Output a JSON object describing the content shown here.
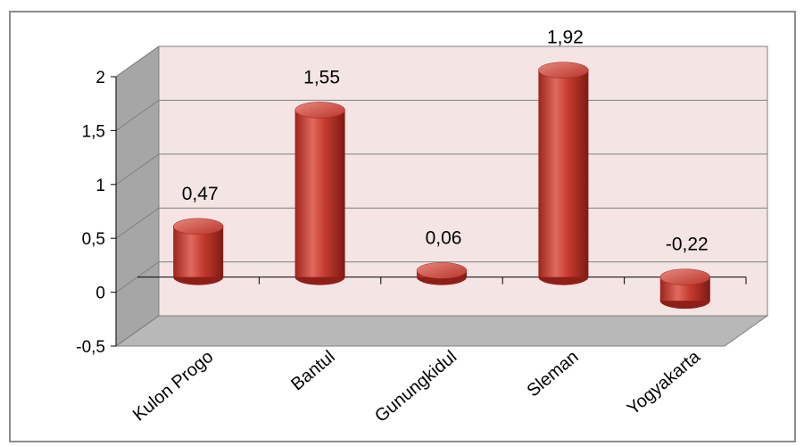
{
  "chart_data": {
    "type": "bar",
    "style": "3d-cylinder",
    "categories": [
      "Kulon Progo",
      "Bantul",
      "Gunungkidul",
      "Sleman",
      "Yogyakarta"
    ],
    "values": [
      0.47,
      1.55,
      0.06,
      1.92,
      -0.22
    ],
    "value_labels": [
      "0,47",
      "1,55",
      "0,06",
      "1,92",
      "-0,22"
    ],
    "y_ticks": [
      -0.5,
      0,
      0.5,
      1,
      1.5,
      2
    ],
    "y_tick_labels": [
      "-0,5",
      "0",
      "0,5",
      "1",
      "1,5",
      "2"
    ],
    "ylim": [
      -0.5,
      2
    ],
    "grid": true,
    "legend": "none",
    "colors": {
      "bar": "#c0392b",
      "bar_dark": "#8e1f18",
      "bar_light": "#e57368",
      "back_wall": "#f4e4e4",
      "side_wall": "#a6a6a6",
      "floor": "#b8b8b8",
      "grid": "#7f7f7f"
    }
  }
}
